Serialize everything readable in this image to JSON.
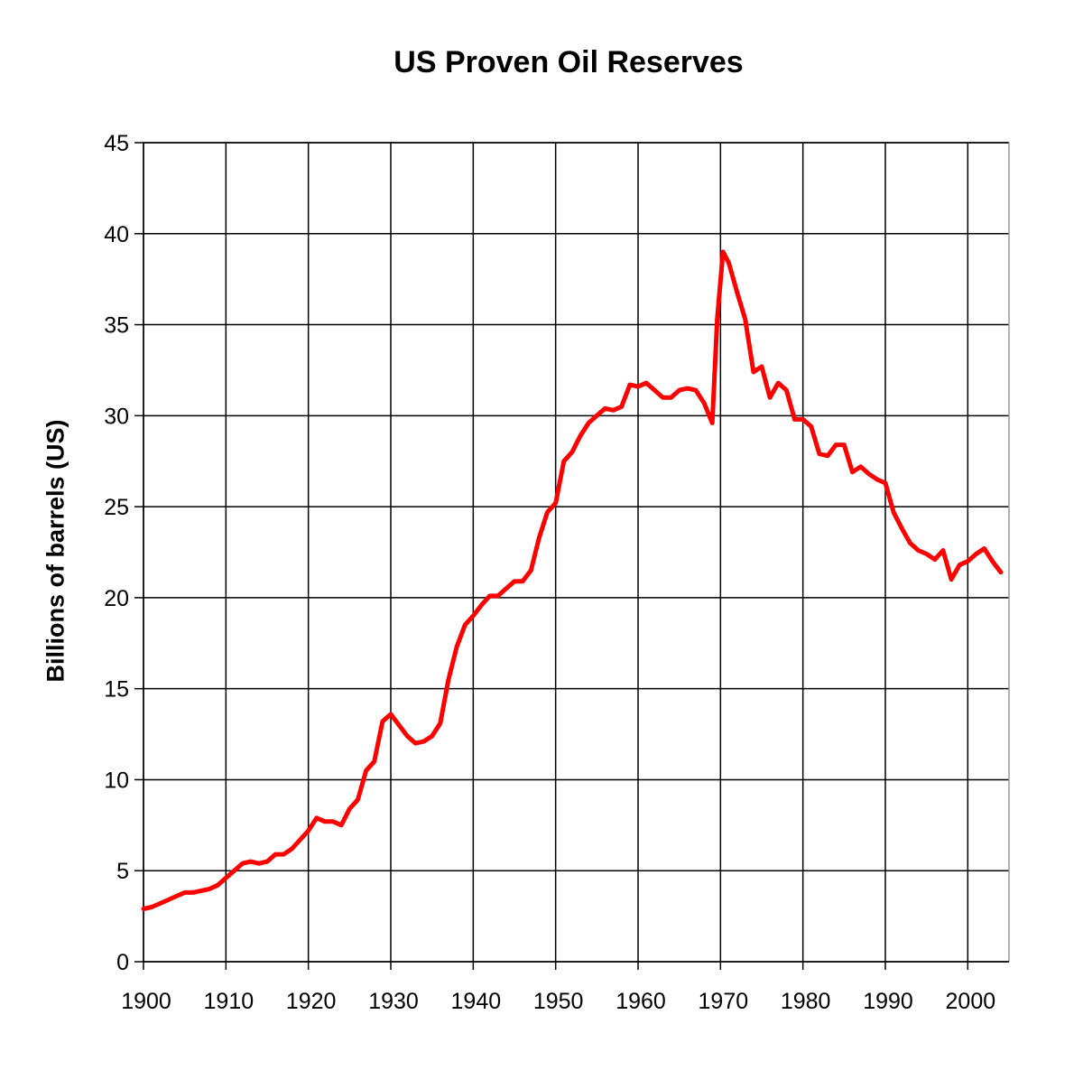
{
  "chart_data": {
    "type": "line",
    "title": "US Proven Oil Reserves",
    "xlabel": "",
    "ylabel": "Billions of barrels (US)",
    "xlim": [
      1900,
      2005
    ],
    "ylim": [
      0,
      45
    ],
    "x_ticks": [
      "1900",
      "1910",
      "1920",
      "1930",
      "1940",
      "1950",
      "1960",
      "1970",
      "1980",
      "1990",
      "2000"
    ],
    "y_ticks": [
      "0",
      "5",
      "10",
      "15",
      "20",
      "25",
      "30",
      "35",
      "40",
      "45"
    ],
    "grid": true,
    "legend": "none",
    "series": [
      {
        "color": "#ff0000",
        "points": [
          [
            1900,
            2.9
          ],
          [
            1901,
            3.0
          ],
          [
            1902,
            3.2
          ],
          [
            1903,
            3.4
          ],
          [
            1904,
            3.6
          ],
          [
            1905,
            3.8
          ],
          [
            1906,
            3.8
          ],
          [
            1907,
            3.9
          ],
          [
            1908,
            4.0
          ],
          [
            1909,
            4.2
          ],
          [
            1910,
            4.6
          ],
          [
            1911,
            5.0
          ],
          [
            1912,
            5.4
          ],
          [
            1913,
            5.5
          ],
          [
            1914,
            5.4
          ],
          [
            1915,
            5.5
          ],
          [
            1916,
            5.9
          ],
          [
            1917,
            5.9
          ],
          [
            1918,
            6.2
          ],
          [
            1919,
            6.7
          ],
          [
            1920,
            7.2
          ],
          [
            1921,
            7.9
          ],
          [
            1922,
            7.7
          ],
          [
            1923,
            7.7
          ],
          [
            1924,
            7.5
          ],
          [
            1925,
            8.4
          ],
          [
            1926,
            8.9
          ],
          [
            1927,
            10.5
          ],
          [
            1928,
            11.0
          ],
          [
            1929,
            13.2
          ],
          [
            1930,
            13.6
          ],
          [
            1931,
            13.0
          ],
          [
            1932,
            12.4
          ],
          [
            1933,
            12.0
          ],
          [
            1934,
            12.1
          ],
          [
            1935,
            12.4
          ],
          [
            1936,
            13.1
          ],
          [
            1937,
            15.5
          ],
          [
            1938,
            17.3
          ],
          [
            1939,
            18.5
          ],
          [
            1940,
            19.0
          ],
          [
            1941,
            19.6
          ],
          [
            1942,
            20.1
          ],
          [
            1943,
            20.1
          ],
          [
            1944,
            20.5
          ],
          [
            1945,
            20.9
          ],
          [
            1946,
            20.9
          ],
          [
            1947,
            21.5
          ],
          [
            1948,
            23.3
          ],
          [
            1949,
            24.7
          ],
          [
            1950,
            25.2
          ],
          [
            1951,
            27.5
          ],
          [
            1952,
            28.0
          ],
          [
            1953,
            28.9
          ],
          [
            1954,
            29.6
          ],
          [
            1955,
            30.0
          ],
          [
            1956,
            30.4
          ],
          [
            1957,
            30.3
          ],
          [
            1958,
            30.5
          ],
          [
            1959,
            31.7
          ],
          [
            1960,
            31.6
          ],
          [
            1961,
            31.8
          ],
          [
            1962,
            31.4
          ],
          [
            1963,
            31.0
          ],
          [
            1964,
            31.0
          ],
          [
            1965,
            31.4
          ],
          [
            1966,
            31.5
          ],
          [
            1967,
            31.4
          ],
          [
            1968,
            30.7
          ],
          [
            1969,
            29.6
          ],
          [
            1969.6,
            35.3
          ],
          [
            1970.3,
            39.0
          ],
          [
            1971,
            38.4
          ],
          [
            1972,
            36.8
          ],
          [
            1973,
            35.3
          ],
          [
            1974,
            32.4
          ],
          [
            1975,
            32.7
          ],
          [
            1976,
            31.0
          ],
          [
            1977,
            31.8
          ],
          [
            1978,
            31.4
          ],
          [
            1979,
            29.8
          ],
          [
            1980,
            29.8
          ],
          [
            1981,
            29.4
          ],
          [
            1982,
            27.9
          ],
          [
            1983,
            27.8
          ],
          [
            1984,
            28.4
          ],
          [
            1985,
            28.4
          ],
          [
            1986,
            26.9
          ],
          [
            1987,
            27.2
          ],
          [
            1988,
            26.8
          ],
          [
            1989,
            26.5
          ],
          [
            1990,
            26.3
          ],
          [
            1991,
            24.7
          ],
          [
            1992,
            23.8
          ],
          [
            1993,
            23.0
          ],
          [
            1994,
            22.6
          ],
          [
            1995,
            22.4
          ],
          [
            1996,
            22.1
          ],
          [
            1997,
            22.6
          ],
          [
            1998,
            21.0
          ],
          [
            1999,
            21.8
          ],
          [
            2000,
            22.0
          ],
          [
            2001,
            22.4
          ],
          [
            2002,
            22.7
          ],
          [
            2003,
            22.0
          ],
          [
            2004,
            21.4
          ]
        ]
      }
    ]
  }
}
